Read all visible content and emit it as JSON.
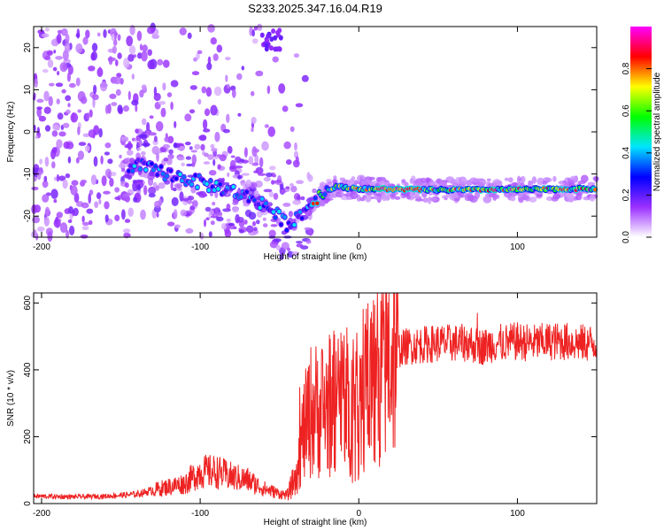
{
  "title": "S233.2025.347.16.04.R19",
  "chart_data": [
    {
      "type": "heatmap",
      "xlabel": "Height of straight line (km)",
      "ylabel": "Frequency (Hz)",
      "xlim": [
        -205,
        150
      ],
      "ylim": [
        -25,
        25
      ],
      "xticks": [
        -200,
        -100,
        0,
        100
      ],
      "yticks": [
        -20,
        -10,
        0,
        10,
        20
      ],
      "colorbar": {
        "label": "Normalized spectral amplitude",
        "range": [
          0,
          1
        ],
        "ticks": [
          0.0,
          0.2,
          0.4,
          0.6,
          0.8
        ],
        "tick_labels": [
          "0.0",
          "0.2",
          "0.4",
          "0.6",
          "0.8"
        ],
        "colors": [
          "#ffffff",
          "#9b30ff",
          "#0000ff",
          "#00e5ff",
          "#00ff00",
          "#ffff00",
          "#ff0000",
          "#ff00ff"
        ]
      },
      "ridge": [
        {
          "x": -140,
          "y": -8
        },
        {
          "x": -120,
          "y": -10
        },
        {
          "x": -100,
          "y": -12
        },
        {
          "x": -80,
          "y": -14
        },
        {
          "x": -60,
          "y": -17
        },
        {
          "x": -45,
          "y": -22
        },
        {
          "x": -35,
          "y": -19
        },
        {
          "x": -25,
          "y": -15
        },
        {
          "x": -15,
          "y": -13
        },
        {
          "x": 0,
          "y": -13.5
        },
        {
          "x": 50,
          "y": -13.8
        },
        {
          "x": 100,
          "y": -13.7
        },
        {
          "x": 150,
          "y": -13.5
        }
      ]
    },
    {
      "type": "line",
      "xlabel": "Height of straight line (km)",
      "ylabel": "SNR (10 * v/v)",
      "xlim": [
        -205,
        150
      ],
      "ylim": [
        0,
        630
      ],
      "xticks": [
        -200,
        -100,
        0,
        100
      ],
      "yticks": [
        0,
        200,
        400,
        600
      ],
      "color": "#ee2222",
      "series": [
        {
          "name": "SNR",
          "x": [
            -205,
            -180,
            -160,
            -140,
            -125,
            -110,
            -100,
            -90,
            -80,
            -70,
            -60,
            -50,
            -45,
            -40,
            -35,
            -30,
            -25,
            -20,
            -15,
            -10,
            -5,
            0,
            5,
            10,
            15,
            20,
            25,
            30,
            40,
            50,
            60,
            70,
            75,
            80,
            85,
            90,
            100,
            110,
            120,
            130,
            140,
            150
          ],
          "y": [
            22,
            20,
            22,
            28,
            45,
            60,
            95,
            95,
            80,
            70,
            45,
            30,
            25,
            80,
            210,
            280,
            280,
            290,
            300,
            320,
            300,
            310,
            360,
            380,
            420,
            450,
            460,
            470,
            475,
            480,
            480,
            480,
            470,
            470,
            480,
            480,
            485,
            480,
            485,
            485,
            480,
            480
          ]
        }
      ]
    }
  ]
}
